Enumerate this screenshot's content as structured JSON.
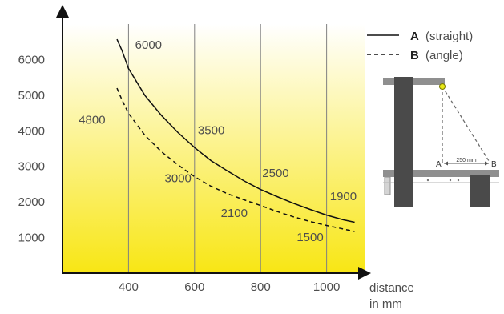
{
  "chart_data": {
    "type": "line",
    "x_axis_label_line1": "distance",
    "x_axis_label_line2": "in mm",
    "x_ticks": [
      400,
      600,
      800,
      1000
    ],
    "y_ticks": [
      1000,
      2000,
      3000,
      4000,
      5000,
      6000
    ],
    "xlim": [
      200,
      1115
    ],
    "ylim": [
      0,
      7000
    ],
    "grid": "vertical",
    "legend_position": "top-right",
    "background": "yellow gradient to white",
    "series": [
      {
        "key": "A",
        "name": "(straight)",
        "line_style": "solid",
        "x": [
          365,
          380,
          400,
          450,
          500,
          550,
          600,
          650,
          700,
          750,
          800,
          850,
          900,
          950,
          1000,
          1050,
          1085
        ],
        "y": [
          6570,
          6260,
          5750,
          4990,
          4430,
          3950,
          3530,
          3160,
          2870,
          2590,
          2350,
          2150,
          1960,
          1790,
          1630,
          1500,
          1430
        ]
      },
      {
        "key": "B",
        "name": "(angle)",
        "line_style": "dashed",
        "x": [
          365,
          380,
          400,
          450,
          500,
          550,
          600,
          650,
          700,
          750,
          800,
          850,
          900,
          950,
          1000,
          1050,
          1085
        ],
        "y": [
          5200,
          4870,
          4490,
          3870,
          3410,
          3040,
          2710,
          2440,
          2230,
          2060,
          1900,
          1730,
          1580,
          1450,
          1340,
          1240,
          1170
        ]
      }
    ],
    "annotations": [
      {
        "text": "6000",
        "x": 420,
        "y": 6300,
        "anchor": "start"
      },
      {
        "text": "4800",
        "x": 330,
        "y": 4200,
        "anchor": "end"
      },
      {
        "text": "3500",
        "x": 610,
        "y": 3900,
        "anchor": "start"
      },
      {
        "text": "3000",
        "x": 550,
        "y": 2550,
        "anchor": "middle"
      },
      {
        "text": "2500",
        "x": 805,
        "y": 2700,
        "anchor": "start"
      },
      {
        "text": "2100",
        "x": 720,
        "y": 1580,
        "anchor": "middle"
      },
      {
        "text": "1900",
        "x": 1010,
        "y": 2050,
        "anchor": "start"
      },
      {
        "text": "1500",
        "x": 950,
        "y": 900,
        "anchor": "middle"
      }
    ]
  },
  "diagram": {
    "label_a": "A",
    "label_b": "B",
    "dimension": "250 mm",
    "colors": {
      "beam": "#4a4a4a",
      "platform": "#8f8f8f",
      "hook": "#e8e817"
    }
  },
  "colors": {
    "axis": "#111111",
    "grid": "#808080",
    "label": "#4d4d4d",
    "bg_top": "#ffffff",
    "bg_bottom": "#f8e614"
  }
}
